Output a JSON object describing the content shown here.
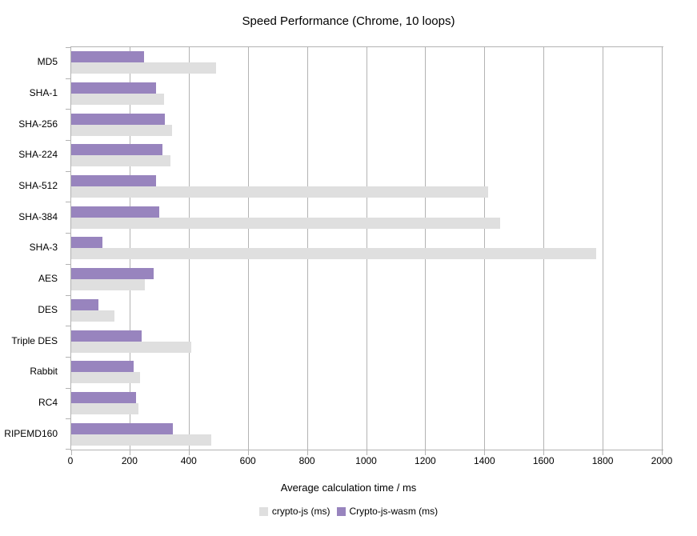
{
  "title": "Speed Performance (Chrome, 10 loops)",
  "chart_data": {
    "type": "bar",
    "orientation": "horizontal",
    "title": "Speed Performance (Chrome, 10 loops)",
    "categories": [
      "MD5",
      "SHA-1",
      "SHA-256",
      "SHA-224",
      "SHA-512",
      "SHA-384",
      "SHA-3",
      "AES",
      "DES",
      "Triple DES",
      "Rabbit",
      "RC4",
      "RIPEMD160"
    ],
    "series": [
      {
        "name": "crypto-js (ms)",
        "color": "#dfdfdf",
        "values": [
          490,
          315,
          340,
          335,
          1410,
          1450,
          1775,
          250,
          147,
          405,
          233,
          226,
          473
        ]
      },
      {
        "name": "Crypto-js-wasm (ms)",
        "color": "#9884be",
        "values": [
          245,
          286,
          317,
          308,
          286,
          297,
          105,
          278,
          92,
          237,
          212,
          218,
          345
        ]
      }
    ],
    "xlabel": "Average calculation time / ms",
    "ylabel": "",
    "xlim": [
      0,
      2000
    ],
    "xticks": [
      0,
      200,
      400,
      600,
      800,
      1000,
      1200,
      1400,
      1600,
      1800,
      2000
    ],
    "grid": true,
    "legend_position": "bottom",
    "bar_draw_order": "Crypto-js-wasm bar on top, crypto-js bar below within each category group"
  },
  "colors": {
    "axis": "#b3b3b3",
    "text": "#000000",
    "background": "#ffffff"
  }
}
